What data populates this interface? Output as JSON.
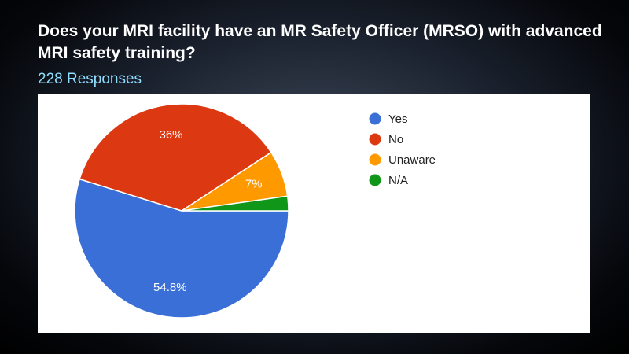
{
  "header": {
    "title": "Does your MRI facility have an MR Safety Officer (MRSO) with advanced MRI safety training?",
    "responses": "228 Responses"
  },
  "chart_data": {
    "type": "pie",
    "categories": [
      "Yes",
      "No",
      "Unaware",
      "N/A"
    ],
    "values": [
      54.8,
      36,
      7,
      2.2
    ],
    "data_labels": [
      "54.8%",
      "36%",
      "7%",
      ""
    ],
    "colors": [
      "#3a6fd8",
      "#dc3912",
      "#ff9900",
      "#109618"
    ],
    "legend_position": "right"
  }
}
